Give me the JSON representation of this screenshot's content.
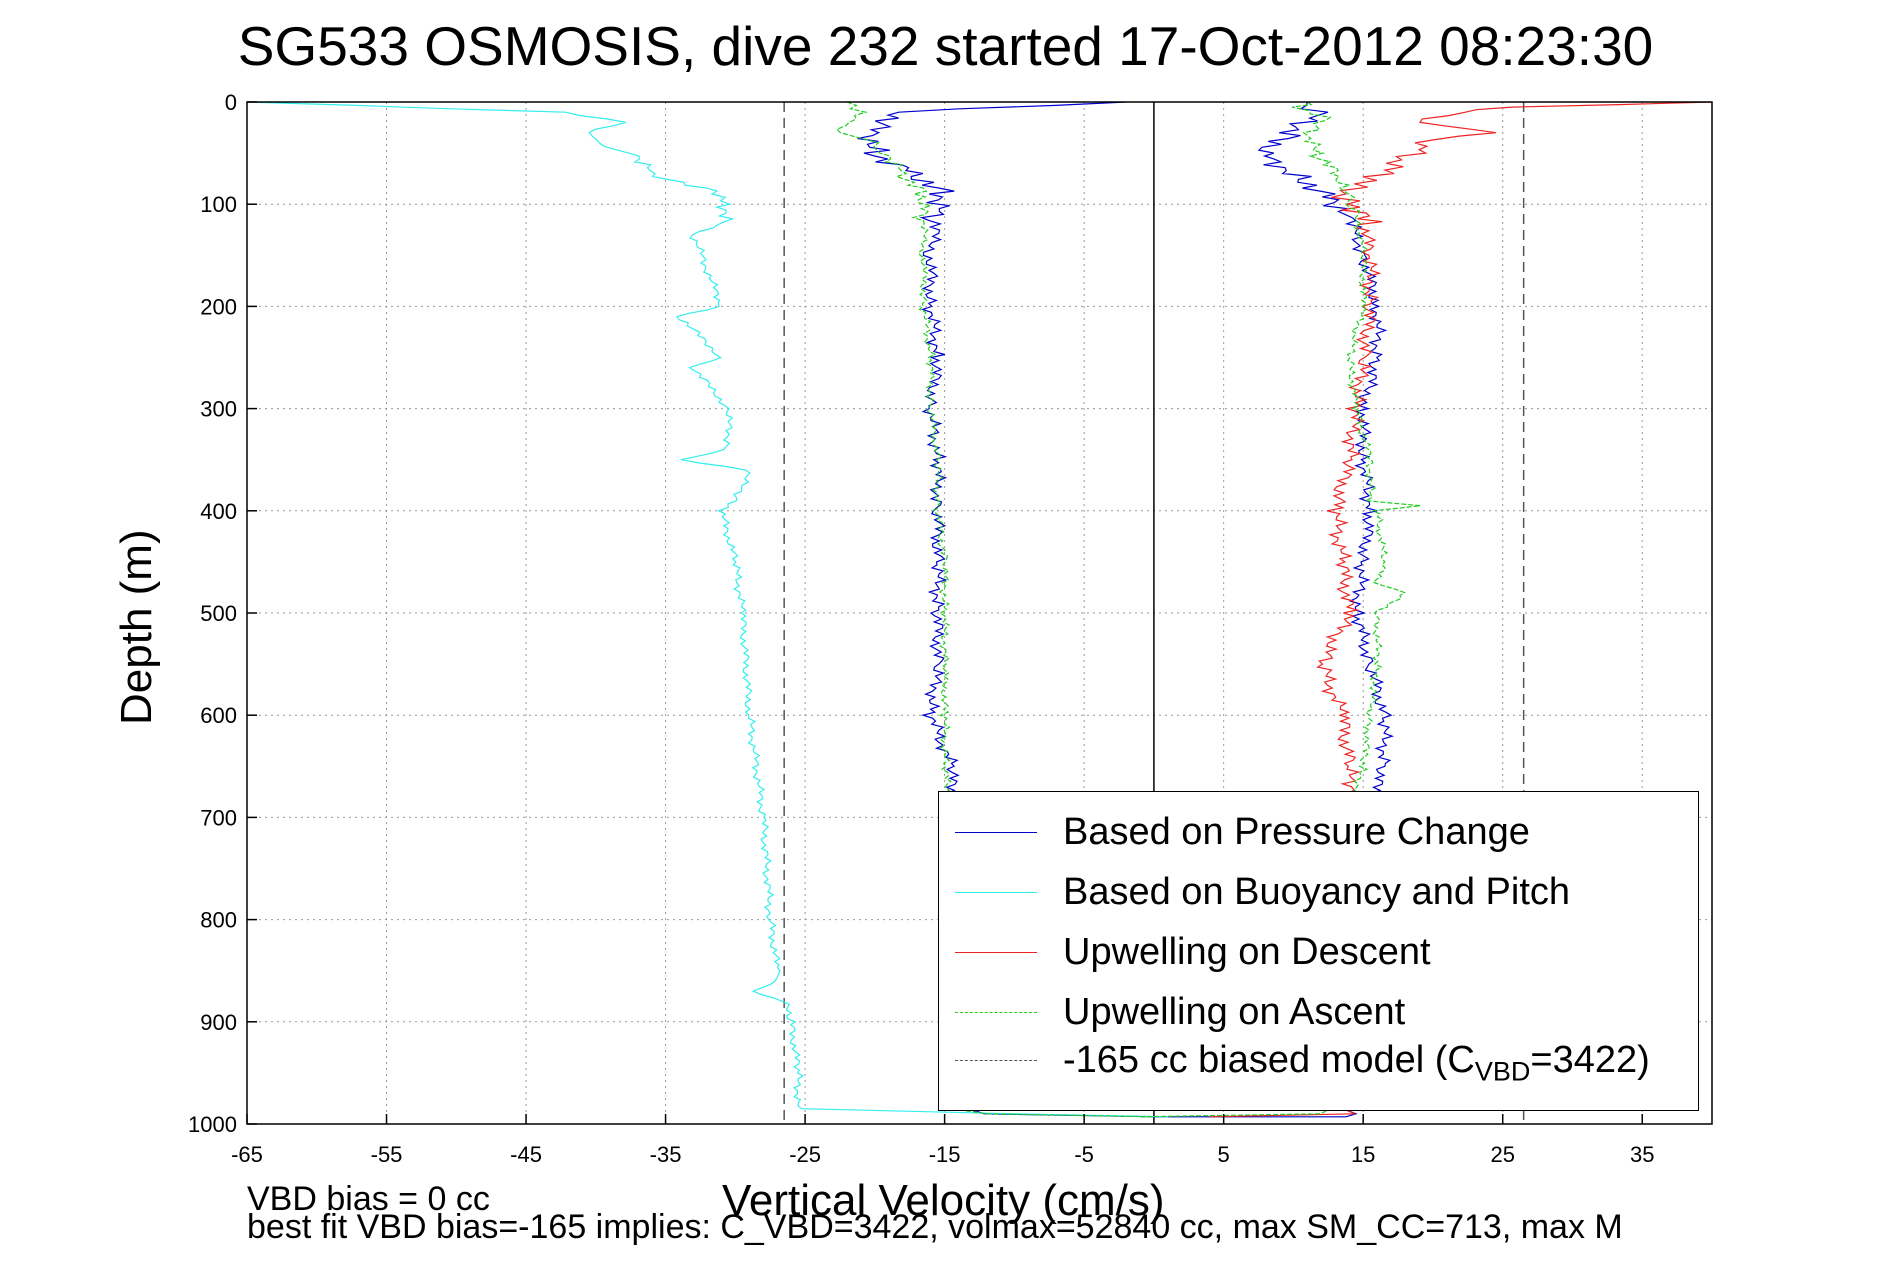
{
  "title": "SG533 OSMOSIS, dive 232 started 17-Oct-2012 08:23:30",
  "notes": {
    "line1": "VBD bias = 0 cc",
    "line2": "best fit VBD bias=-165 implies: C_VBD=3422, volmax=52840 cc, max SM_CC=713, max M"
  },
  "legend": {
    "items": [
      {
        "label": "Based on Pressure Change",
        "color": "#0000cc",
        "style": "solid"
      },
      {
        "label": "Based on Buoyancy and Pitch",
        "color": "#33eeee",
        "style": "solid"
      },
      {
        "label": "Upwelling on Descent",
        "color": "#ee2222",
        "style": "solid"
      },
      {
        "label": "Upwelling on Ascent",
        "color": "#22cc22",
        "style": "dashed"
      }
    ],
    "model_label_prefix": "-165 cc biased model (C",
    "model_label_sub": "VBD",
    "model_label_suffix": "=3422)",
    "model_color": "#555555"
  },
  "chart_data": {
    "type": "line",
    "title": "SG533 OSMOSIS, dive 232 started 17-Oct-2012 08:23:30",
    "xlabel": "Vertical Velocity (cm/s)",
    "ylabel": "Depth (m)",
    "xlim": [
      -65,
      40
    ],
    "ylim": [
      0,
      1000
    ],
    "y_reversed": true,
    "grid": true,
    "legend_position": "bottom-right",
    "xticks": [
      -65,
      -55,
      -45,
      -35,
      -25,
      -15,
      -5,
      5,
      15,
      25,
      35
    ],
    "yticks": [
      0,
      100,
      200,
      300,
      400,
      500,
      600,
      700,
      800,
      900,
      1000
    ],
    "reference_lines": [
      {
        "x": 0,
        "color": "#000000",
        "style": "solid"
      },
      {
        "x": -26.5,
        "color": "#555555",
        "style": "dashed"
      },
      {
        "x": 26.5,
        "color": "#555555",
        "style": "dashed"
      }
    ],
    "series": [
      {
        "name": "Based on Pressure Change",
        "color": "#0000cc",
        "depth": [
          0,
          10,
          30,
          50,
          70,
          90,
          110,
          150,
          200,
          250,
          300,
          350,
          400,
          450,
          500,
          550,
          600,
          650,
          700,
          750,
          800,
          850,
          900,
          950,
          985,
          990,
          993,
          993,
          990,
          985,
          950,
          900,
          850,
          800,
          750,
          700,
          650,
          600,
          550,
          500,
          450,
          400,
          350,
          300,
          250,
          200,
          150,
          110,
          90,
          70,
          50,
          30,
          10,
          0
        ],
        "velocity": [
          -2,
          -18,
          -20,
          -20,
          -17,
          -15,
          -15.5,
          -16,
          -16,
          -15.5,
          -16,
          -15.5,
          -15.5,
          -15.5,
          -15.5,
          -15.5,
          -16,
          -14.5,
          -14.5,
          -14.5,
          -14.5,
          -14.5,
          -14.5,
          -14.5,
          -14,
          -12,
          0,
          14,
          14,
          14,
          14,
          14,
          14,
          14,
          14,
          15,
          16.5,
          16.5,
          15.5,
          14.5,
          15,
          15.5,
          15,
          15,
          16,
          16,
          15,
          14,
          12.5,
          10,
          8,
          10,
          12,
          11
        ]
      },
      {
        "name": "Based on Buoyancy and Pitch",
        "color": "#33eeee",
        "depth": [
          0,
          10,
          20,
          30,
          40,
          50,
          70,
          90,
          100,
          120,
          130,
          200,
          210,
          250,
          260,
          300,
          340,
          350,
          360,
          390,
          400,
          450,
          500,
          600,
          700,
          800,
          850,
          860,
          870,
          880,
          900,
          950,
          985,
          990,
          993
        ],
        "velocity": [
          -65,
          -42,
          -38,
          -40,
          -40,
          -37,
          -36,
          -31,
          -30.5,
          -31,
          -33,
          -31,
          -34,
          -31,
          -33,
          -30.5,
          -30.5,
          -34,
          -29,
          -30,
          -31,
          -30,
          -29.5,
          -29,
          -28,
          -27.5,
          -27,
          -27,
          -29,
          -26.5,
          -26,
          -25.5,
          -25.5,
          -10,
          1
        ]
      },
      {
        "name": "Upwelling on Descent",
        "color": "#ee2222",
        "depth": [
          0,
          5,
          10,
          20,
          30,
          40,
          50,
          60,
          70,
          80,
          90,
          100,
          120,
          150,
          200,
          250,
          300,
          350,
          400,
          450,
          500,
          550,
          600,
          650,
          670,
          680,
          990,
          993
        ],
        "velocity": [
          40,
          26,
          22,
          20,
          24,
          20,
          19,
          18,
          17,
          15.5,
          14,
          14.5,
          15,
          15.5,
          15.5,
          15,
          14.5,
          14,
          13,
          13.5,
          14,
          12,
          13.5,
          14,
          14,
          14,
          14,
          4
        ]
      },
      {
        "name": "Upwelling on Ascent",
        "color": "#22cc22",
        "depth": [
          993,
          990,
          985,
          950,
          900,
          850,
          800,
          750,
          700,
          650,
          600,
          550,
          500,
          480,
          470,
          450,
          400,
          395,
          390,
          350,
          300,
          250,
          200,
          150,
          110,
          100,
          90,
          70,
          50,
          30,
          15,
          5,
          0
        ],
        "velocity": [
          -1,
          12,
          13,
          14,
          14,
          14,
          14,
          14,
          14,
          15,
          15.5,
          16,
          16,
          18,
          16,
          16.5,
          16,
          19,
          15.5,
          15.5,
          14.5,
          14,
          15,
          15,
          14.5,
          14,
          13.5,
          13,
          11.5,
          11,
          12,
          10,
          11
        ]
      },
      {
        "name": "Upwelling on Ascent (descent limb)",
        "color": "#22cc22",
        "depth": [
          0,
          10,
          20,
          30,
          40,
          50,
          70,
          90,
          110,
          150,
          200,
          250,
          300,
          350,
          400,
          450,
          500,
          550,
          600,
          650,
          700,
          800,
          900,
          985,
          990,
          993
        ],
        "velocity": [
          -22,
          -20.5,
          -22,
          -22,
          -20,
          -19,
          -18,
          -16.5,
          -16.5,
          -16.5,
          -16.5,
          -16,
          -16,
          -15.5,
          -15.5,
          -15,
          -15,
          -15,
          -15,
          -15,
          -14.5,
          -14.5,
          -14.5,
          -14.5,
          -12,
          0
        ]
      }
    ]
  }
}
